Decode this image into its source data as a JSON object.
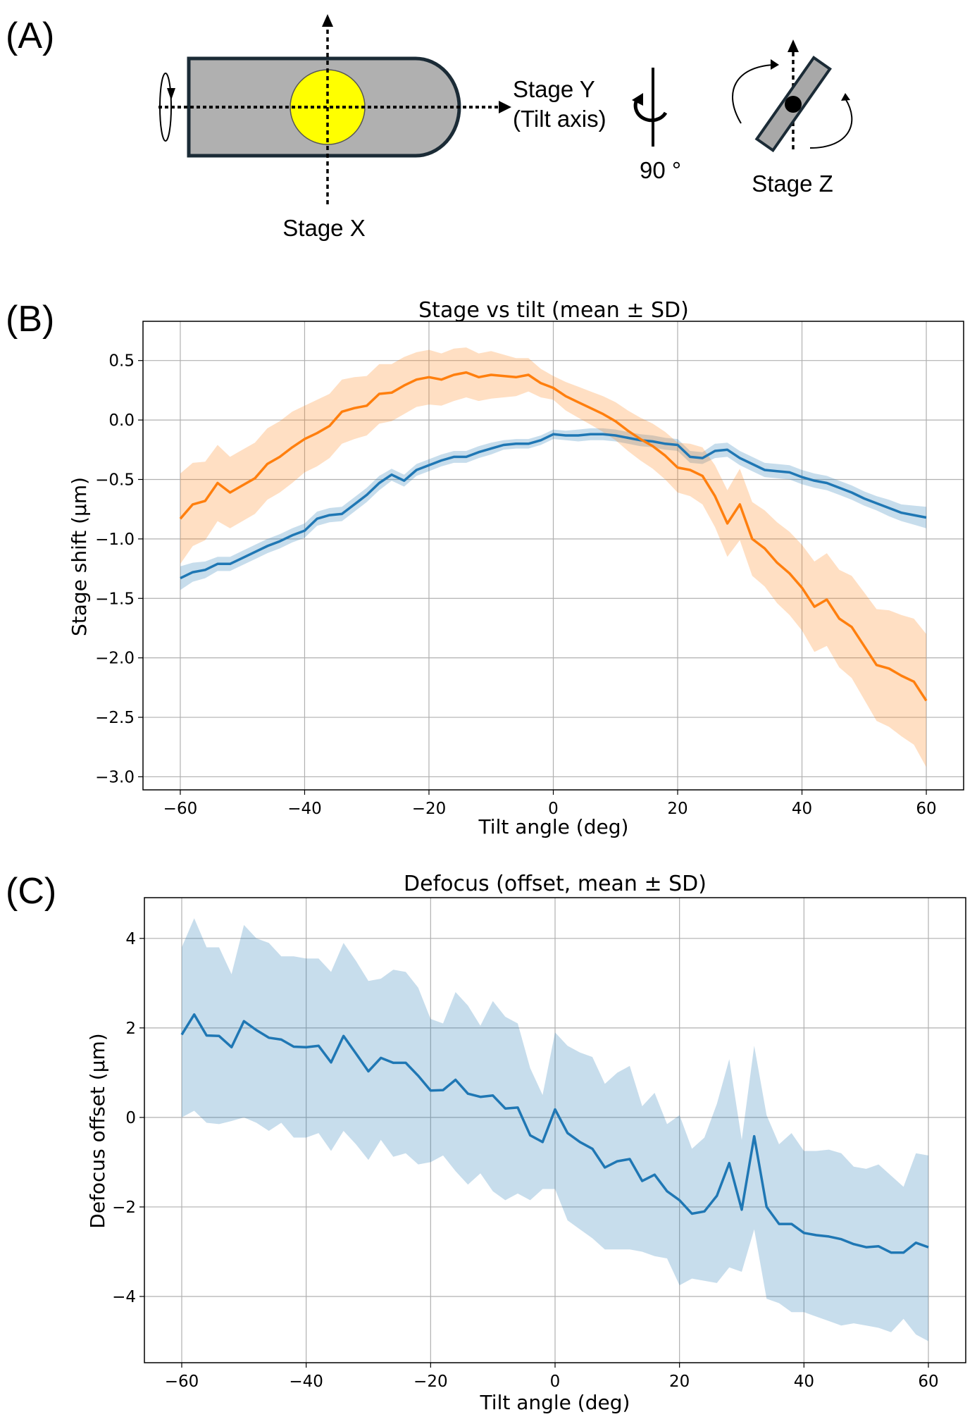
{
  "panel_labels": {
    "a": "(A)",
    "b": "(B)",
    "c": "(C)"
  },
  "diagram": {
    "stage_y": "Stage Y",
    "tilt_axis": "(Tilt axis)",
    "rotation": "90 °",
    "stage_z": "Stage Z",
    "stage_x": "Stage X"
  },
  "colors": {
    "blue": "#1f77b4",
    "orange": "#ff7f0e",
    "stage_gray": "#b0b0b0",
    "sample_yellow": "#ffff00",
    "outline": "#1b2b36"
  },
  "chart_data": [
    {
      "type": "line",
      "title": "Stage vs tilt (mean ± SD)",
      "xlabel": "Tilt angle (deg)",
      "ylabel": "Stage shift (µm)",
      "xlim": [
        -66,
        66
      ],
      "ylim": [
        -3.11,
        0.83
      ],
      "xticks": [
        -60,
        -40,
        -20,
        0,
        20,
        40,
        60
      ],
      "xtick_labels": [
        "−60",
        "−40",
        "−20",
        "0",
        "20",
        "40",
        "60"
      ],
      "yticks": [
        0.5,
        0.0,
        -0.5,
        -1.0,
        -1.5,
        -2.0,
        -2.5,
        -3.0
      ],
      "ytick_labels": [
        "0.5",
        "0.0",
        "−0.5",
        "−1.0",
        "−1.5",
        "−2.0",
        "−2.5",
        "−3.0"
      ],
      "grid": true,
      "x": [
        -60,
        -58,
        -56,
        -54,
        -52,
        -50,
        -48,
        -46,
        -44,
        -42,
        -40,
        -38,
        -36,
        -34,
        -32,
        -30,
        -28,
        -26,
        -24,
        -22,
        -20,
        -18,
        -16,
        -14,
        -12,
        -10,
        -8,
        -6,
        -4,
        -2,
        0,
        2,
        4,
        6,
        8,
        10,
        12,
        14,
        16,
        18,
        20,
        22,
        24,
        26,
        28,
        30,
        32,
        34,
        36,
        38,
        40,
        42,
        44,
        46,
        48,
        50,
        52,
        54,
        56,
        58,
        60
      ],
      "series": [
        {
          "name": "blue",
          "color": "#1f77b4",
          "values": [
            -1.33,
            -1.28,
            -1.26,
            -1.21,
            -1.21,
            -1.16,
            -1.11,
            -1.06,
            -1.02,
            -0.97,
            -0.93,
            -0.83,
            -0.8,
            -0.79,
            -0.71,
            -0.63,
            -0.53,
            -0.46,
            -0.51,
            -0.42,
            -0.38,
            -0.34,
            -0.31,
            -0.31,
            -0.27,
            -0.24,
            -0.21,
            -0.2,
            -0.2,
            -0.17,
            -0.12,
            -0.13,
            -0.13,
            -0.12,
            -0.12,
            -0.13,
            -0.15,
            -0.17,
            -0.18,
            -0.2,
            -0.21,
            -0.31,
            -0.32,
            -0.26,
            -0.25,
            -0.32,
            -0.37,
            -0.42,
            -0.43,
            -0.44,
            -0.48,
            -0.51,
            -0.53,
            -0.57,
            -0.61,
            -0.66,
            -0.7,
            -0.74,
            -0.78,
            -0.8,
            -0.82
          ],
          "sd": [
            0.1,
            0.08,
            0.07,
            0.06,
            0.06,
            0.06,
            0.06,
            0.06,
            0.06,
            0.06,
            0.06,
            0.06,
            0.06,
            0.06,
            0.06,
            0.06,
            0.06,
            0.05,
            0.05,
            0.05,
            0.05,
            0.05,
            0.05,
            0.05,
            0.05,
            0.05,
            0.04,
            0.04,
            0.04,
            0.04,
            0.04,
            0.04,
            0.05,
            0.05,
            0.05,
            0.05,
            0.05,
            0.05,
            0.05,
            0.05,
            0.05,
            0.05,
            0.05,
            0.06,
            0.06,
            0.06,
            0.06,
            0.06,
            0.06,
            0.06,
            0.06,
            0.06,
            0.06,
            0.06,
            0.06,
            0.06,
            0.06,
            0.07,
            0.07,
            0.08,
            0.09
          ]
        },
        {
          "name": "orange",
          "color": "#ff7f0e",
          "values": [
            -0.83,
            -0.71,
            -0.68,
            -0.53,
            -0.61,
            -0.55,
            -0.49,
            -0.37,
            -0.31,
            -0.23,
            -0.16,
            -0.11,
            -0.05,
            0.07,
            0.1,
            0.12,
            0.22,
            0.23,
            0.29,
            0.34,
            0.36,
            0.34,
            0.38,
            0.4,
            0.36,
            0.38,
            0.37,
            0.36,
            0.38,
            0.31,
            0.27,
            0.2,
            0.15,
            0.1,
            0.05,
            -0.01,
            -0.09,
            -0.16,
            -0.22,
            -0.3,
            -0.4,
            -0.42,
            -0.47,
            -0.64,
            -0.87,
            -0.71,
            -1.0,
            -1.08,
            -1.2,
            -1.29,
            -1.41,
            -1.57,
            -1.51,
            -1.67,
            -1.74,
            -1.9,
            -2.06,
            -2.09,
            -2.15,
            -2.2,
            -2.36
          ],
          "sd": [
            0.38,
            0.35,
            0.33,
            0.32,
            0.3,
            0.3,
            0.3,
            0.3,
            0.3,
            0.3,
            0.28,
            0.28,
            0.27,
            0.27,
            0.26,
            0.25,
            0.25,
            0.24,
            0.24,
            0.23,
            0.23,
            0.22,
            0.22,
            0.21,
            0.2,
            0.2,
            0.18,
            0.16,
            0.14,
            0.12,
            0.1,
            0.12,
            0.13,
            0.14,
            0.15,
            0.16,
            0.17,
            0.18,
            0.19,
            0.2,
            0.21,
            0.22,
            0.24,
            0.26,
            0.28,
            0.3,
            0.31,
            0.32,
            0.34,
            0.35,
            0.36,
            0.38,
            0.39,
            0.41,
            0.43,
            0.45,
            0.47,
            0.49,
            0.51,
            0.53,
            0.56
          ]
        }
      ]
    },
    {
      "type": "line",
      "title": "Defocus (offset, mean ± SD)",
      "xlabel": "Tilt angle (deg)",
      "ylabel": "Defocus offset (µm)",
      "xlim": [
        -66,
        66
      ],
      "ylim": [
        -5.48,
        4.91
      ],
      "xticks": [
        -60,
        -40,
        -20,
        0,
        20,
        40,
        60
      ],
      "xtick_labels": [
        "−60",
        "−40",
        "−20",
        "0",
        "20",
        "40",
        "60"
      ],
      "yticks": [
        4,
        2,
        0,
        -2,
        -4
      ],
      "ytick_labels": [
        "4",
        "2",
        "0",
        "−2",
        "−4"
      ],
      "grid": true,
      "x": [
        -60,
        -58,
        -56,
        -54,
        -52,
        -50,
        -48,
        -46,
        -44,
        -42,
        -40,
        -38,
        -36,
        -34,
        -32,
        -30,
        -28,
        -26,
        -24,
        -22,
        -20,
        -18,
        -16,
        -14,
        -12,
        -10,
        -8,
        -6,
        -4,
        -2,
        0,
        2,
        4,
        6,
        8,
        10,
        12,
        14,
        16,
        18,
        20,
        22,
        24,
        26,
        28,
        30,
        32,
        34,
        36,
        38,
        40,
        42,
        44,
        46,
        48,
        50,
        52,
        54,
        56,
        58,
        60
      ],
      "series": [
        {
          "name": "defocus",
          "color": "#1f77b4",
          "values": [
            1.85,
            2.3,
            1.83,
            1.82,
            1.57,
            2.15,
            1.95,
            1.78,
            1.74,
            1.58,
            1.57,
            1.6,
            1.23,
            1.82,
            1.43,
            1.03,
            1.33,
            1.22,
            1.22,
            0.93,
            0.6,
            0.61,
            0.84,
            0.53,
            0.46,
            0.49,
            0.2,
            0.22,
            -0.4,
            -0.55,
            0.18,
            -0.35,
            -0.55,
            -0.7,
            -1.12,
            -0.98,
            -0.93,
            -1.42,
            -1.28,
            -1.65,
            -1.85,
            -2.15,
            -2.1,
            -1.75,
            -1.02,
            -2.06,
            -0.42,
            -2.0,
            -2.38,
            -2.38,
            -2.58,
            -2.63,
            -2.66,
            -2.72,
            -2.83,
            -2.9,
            -2.88,
            -3.02,
            -3.02,
            -2.8,
            -2.9
          ],
          "upper": [
            3.8,
            4.45,
            3.8,
            3.8,
            3.2,
            4.3,
            4.0,
            3.9,
            3.6,
            3.6,
            3.55,
            3.55,
            3.25,
            3.9,
            3.5,
            3.05,
            3.1,
            3.3,
            3.25,
            2.9,
            2.2,
            2.1,
            2.8,
            2.5,
            2.05,
            2.6,
            2.25,
            2.1,
            1.1,
            0.5,
            1.9,
            1.6,
            1.45,
            1.35,
            0.75,
            1.0,
            1.15,
            0.25,
            0.55,
            -0.15,
            0.05,
            -0.7,
            -0.45,
            0.3,
            1.3,
            -0.5,
            1.6,
            0.05,
            -0.6,
            -0.35,
            -0.75,
            -0.75,
            -0.72,
            -0.8,
            -1.1,
            -1.15,
            -1.05,
            -1.3,
            -1.55,
            -0.8,
            -0.85
          ],
          "lower": [
            0,
            0.15,
            -0.12,
            -0.15,
            -0.08,
            0,
            -0.12,
            -0.3,
            -0.12,
            -0.45,
            -0.45,
            -0.35,
            -0.75,
            -0.3,
            -0.6,
            -0.95,
            -0.5,
            -0.88,
            -0.8,
            -1.05,
            -1.0,
            -0.85,
            -1.2,
            -1.5,
            -1.25,
            -1.65,
            -1.85,
            -1.7,
            -1.85,
            -1.6,
            -1.6,
            -2.3,
            -2.5,
            -2.7,
            -2.95,
            -2.95,
            -2.95,
            -3.0,
            -3.1,
            -3.15,
            -3.75,
            -3.6,
            -3.65,
            -3.7,
            -3.35,
            -3.45,
            -2.5,
            -4.05,
            -4.15,
            -4.35,
            -4.35,
            -4.45,
            -4.55,
            -4.65,
            -4.6,
            -4.65,
            -4.7,
            -4.8,
            -4.5,
            -4.85,
            -5.0
          ]
        }
      ]
    }
  ]
}
